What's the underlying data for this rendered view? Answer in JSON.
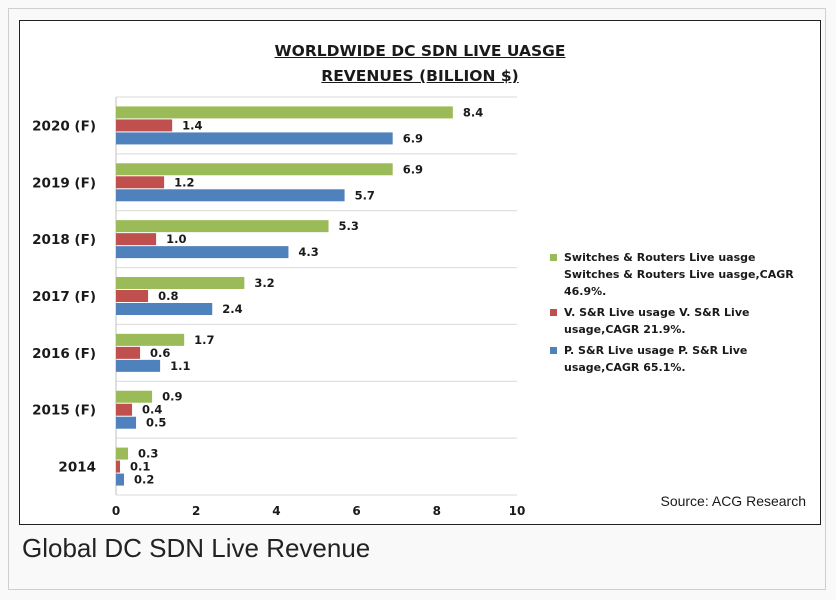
{
  "chart_data": {
    "type": "bar",
    "orientation": "horizontal",
    "title_line1": "WORLDWIDE DC SDN LIVE UASGE",
    "title_line2": "REVENUES (BILLION $)",
    "categories": [
      "2020 (F)",
      "2019 (F)",
      "2018 (F)",
      "2017 (F)",
      "2016 (F)",
      "2015 (F)",
      "2014"
    ],
    "series": [
      {
        "name": "Switches & Routers Live uasge  Switches & Routers Live uasge,CAGR 46.9%.",
        "color": "#9bbb59",
        "values": [
          8.4,
          6.9,
          5.3,
          3.2,
          1.7,
          0.9,
          0.3
        ],
        "labels": [
          "8.4",
          "6.9",
          "5.3",
          "3.2",
          "1.7",
          "0.9",
          "0.3"
        ]
      },
      {
        "name": "V. S&R Live usage V. S&R Live usage,CAGR 21.9%.",
        "color": "#c0504d",
        "values": [
          1.4,
          1.2,
          1.0,
          0.8,
          0.6,
          0.4,
          0.1
        ],
        "labels": [
          "1.4",
          "1.2",
          "1.0",
          "0.8",
          "0.6",
          "0.4",
          "0.1"
        ]
      },
      {
        "name": "P. S&R Live usage P. S&R Live usage,CAGR 65.1%.",
        "color": "#4f81bd",
        "values": [
          6.9,
          5.7,
          4.3,
          2.4,
          1.1,
          0.5,
          0.2
        ],
        "labels": [
          "6.9",
          "5.7",
          "4.3",
          "2.4",
          "1.1",
          "0.5",
          "0.2"
        ]
      }
    ],
    "xlim": [
      0,
      10
    ],
    "xticks": [
      "0",
      "2",
      "4",
      "6",
      "8",
      "10"
    ],
    "grid": true,
    "legend_position": "right"
  },
  "source": "Source: ACG Research",
  "caption": "Global DC SDN Live Revenue"
}
